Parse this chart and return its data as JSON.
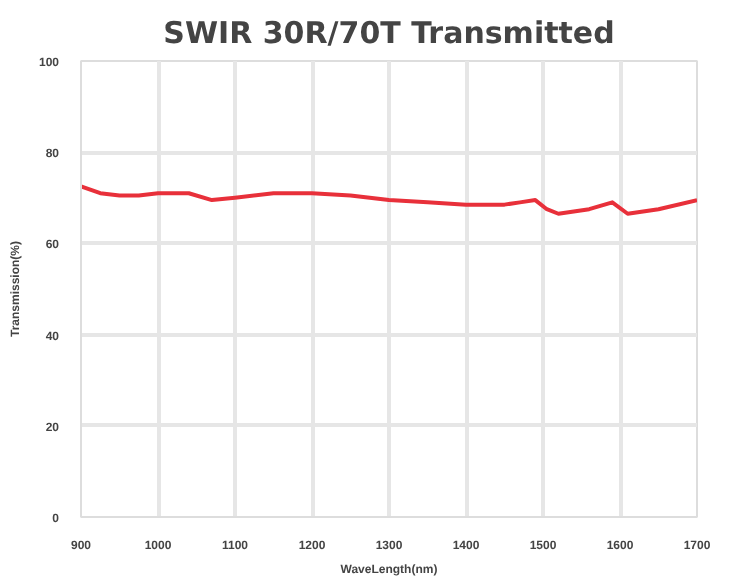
{
  "chart_data": {
    "type": "line",
    "title": "SWIR 30R/70T Transmitted",
    "xlabel": "WaveLength(nm)",
    "ylabel": "Transmission(%)",
    "x": [
      900,
      925,
      950,
      975,
      1000,
      1040,
      1070,
      1100,
      1150,
      1200,
      1250,
      1300,
      1350,
      1400,
      1450,
      1470,
      1490,
      1505,
      1520,
      1560,
      1590,
      1610,
      1650,
      1700
    ],
    "series": [
      {
        "color": "#e8303a",
        "values": [
          72.5,
          71,
          70.5,
          70.5,
          71,
          71,
          69.5,
          70,
          71,
          71,
          70.5,
          69.5,
          69,
          68.5,
          68.5,
          69,
          69.5,
          67.5,
          66.5,
          67.5,
          69,
          66.5,
          67.5,
          69.5
        ]
      }
    ],
    "xlim": [
      900,
      1700
    ],
    "ylim": [
      0,
      100
    ],
    "xticks": [
      900,
      1000,
      1100,
      1200,
      1300,
      1400,
      1500,
      1600,
      1700
    ],
    "yticks": [
      0,
      20,
      40,
      60,
      80,
      100
    ],
    "grid": true,
    "marker": "none",
    "line_style": "solid"
  }
}
